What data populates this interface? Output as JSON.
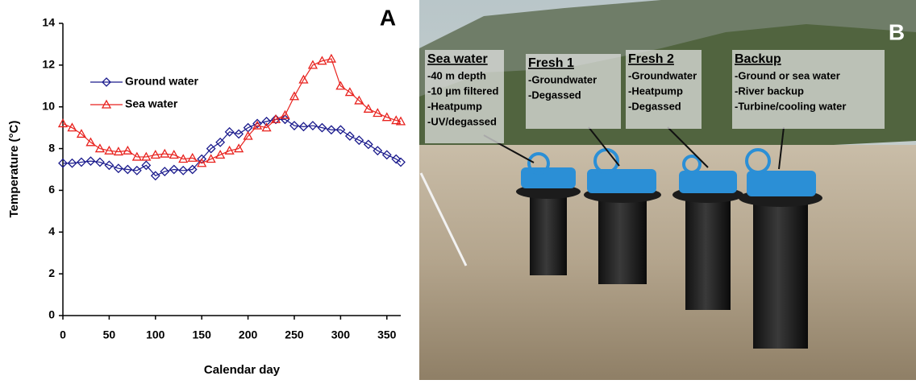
{
  "chart_data": {
    "type": "line",
    "panel_label": "A",
    "x_label": "Calendar day",
    "y_label": "Temperature (°C)",
    "x": [
      0,
      10,
      20,
      30,
      40,
      50,
      60,
      70,
      80,
      90,
      100,
      110,
      120,
      130,
      140,
      150,
      160,
      170,
      180,
      190,
      200,
      210,
      220,
      230,
      240,
      250,
      260,
      270,
      280,
      290,
      300,
      310,
      320,
      330,
      340,
      350,
      360,
      365
    ],
    "series": [
      {
        "name": "Ground water",
        "color": "#1a1a8c",
        "marker": "diamond",
        "values": [
          7.3,
          7.3,
          7.35,
          7.4,
          7.35,
          7.2,
          7.05,
          7.0,
          6.95,
          7.2,
          6.7,
          6.9,
          7.0,
          6.95,
          7.0,
          7.5,
          8.0,
          8.3,
          8.8,
          8.7,
          9.0,
          9.2,
          9.3,
          9.4,
          9.4,
          9.1,
          9.05,
          9.1,
          9.0,
          8.9,
          8.9,
          8.6,
          8.4,
          8.2,
          7.9,
          7.7,
          7.5,
          7.35
        ]
      },
      {
        "name": "Sea water",
        "color": "#e8221e",
        "marker": "triangle",
        "values": [
          9.2,
          9.0,
          8.7,
          8.3,
          8.0,
          7.9,
          7.85,
          7.9,
          7.6,
          7.6,
          7.7,
          7.75,
          7.7,
          7.5,
          7.55,
          7.3,
          7.5,
          7.7,
          7.9,
          8.0,
          8.6,
          9.1,
          9.0,
          9.4,
          9.6,
          10.5,
          11.3,
          12.0,
          12.2,
          12.3,
          11.0,
          10.7,
          10.3,
          9.9,
          9.7,
          9.5,
          9.35,
          9.3
        ]
      }
    ],
    "xlim": [
      0,
      365
    ],
    "xticks": [
      0,
      50,
      100,
      150,
      200,
      250,
      300,
      350
    ],
    "ylim": [
      0,
      14
    ],
    "yticks": [
      0,
      2,
      4,
      6,
      8,
      10,
      12,
      14
    ],
    "legend": "upper left"
  },
  "photo": {
    "panel_label": "B",
    "boxes": [
      {
        "title": "Sea water",
        "lines": [
          "-40 m depth",
          "-10 µm filtered",
          "-Heatpump",
          "-UV/degassed"
        ]
      },
      {
        "title": "Fresh 1",
        "lines": [
          "-Groundwater",
          "-Degassed"
        ]
      },
      {
        "title": "Fresh 2",
        "lines": [
          "-Groundwater",
          "-Heatpump",
          "-Degassed"
        ]
      },
      {
        "title": "Backup",
        "lines": [
          "-Ground or sea water",
          "-River backup",
          "-Turbine/cooling water"
        ]
      }
    ]
  }
}
